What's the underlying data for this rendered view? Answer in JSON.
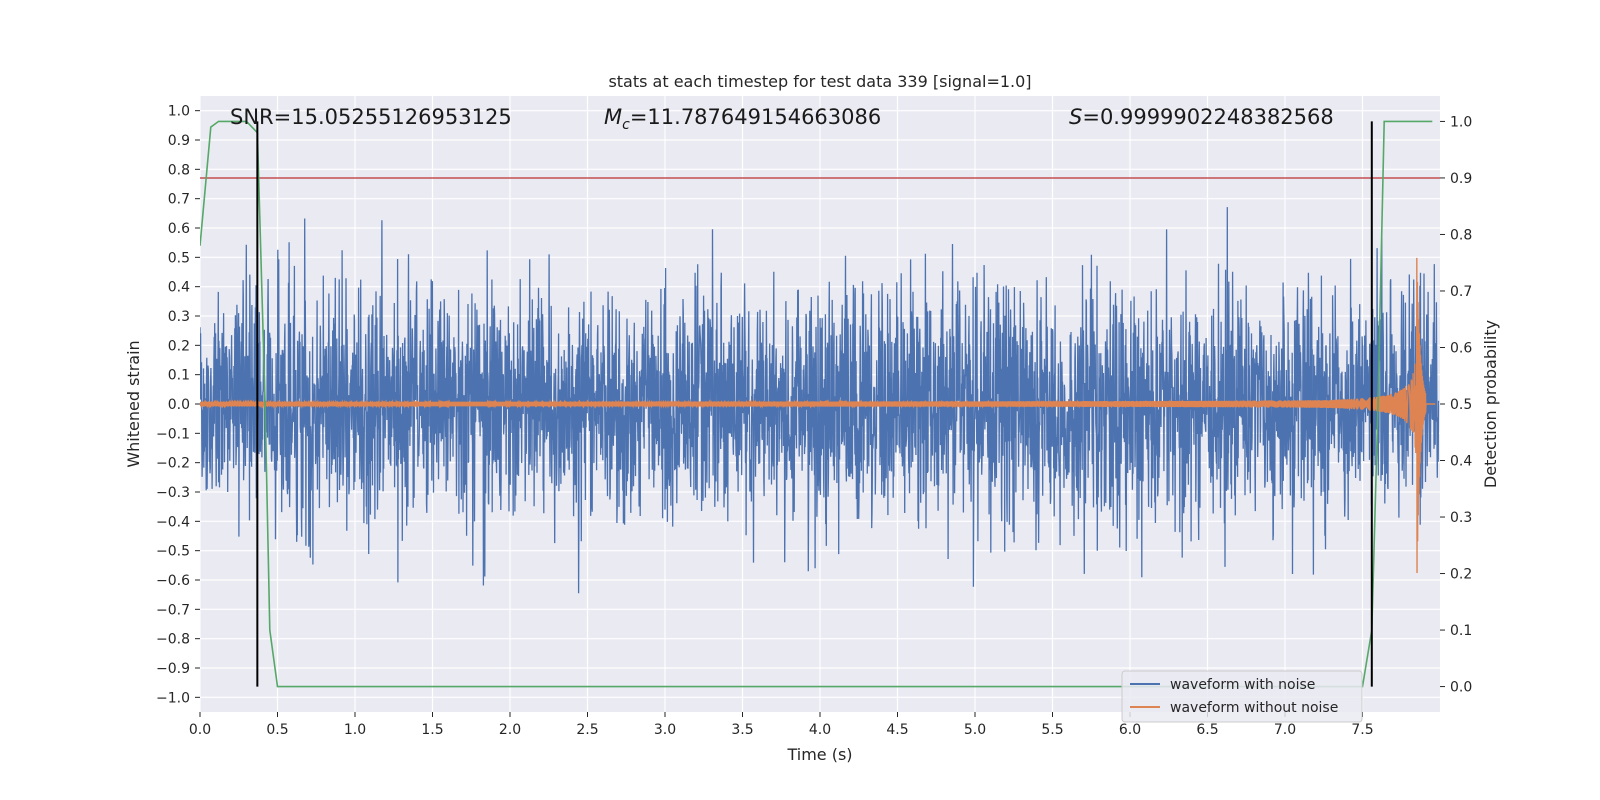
{
  "chart_data": {
    "type": "line",
    "title": "stats at each timestep for test data 339 [signal=1.0]",
    "xlabel": "Time (s)",
    "ylabel": "Whitened strain",
    "y2label": "Detection probability",
    "xlim": [
      0.0,
      8.0
    ],
    "ylim": [
      -1.05,
      1.05
    ],
    "y2lim": [
      -0.045,
      1.045
    ],
    "xticks": [
      "0.0",
      "0.5",
      "1.0",
      "1.5",
      "2.0",
      "2.5",
      "3.0",
      "3.5",
      "4.0",
      "4.5",
      "5.0",
      "5.5",
      "6.0",
      "6.5",
      "7.0",
      "7.5"
    ],
    "yticks": [
      "1.0",
      "0.9",
      "0.8",
      "0.7",
      "0.6",
      "0.5",
      "0.4",
      "0.3",
      "0.2",
      "0.1",
      "0.0",
      "−0.1",
      "−0.2",
      "−0.3",
      "−0.4",
      "−0.5",
      "−0.6",
      "−0.7",
      "−0.8",
      "−0.9",
      "−1.0"
    ],
    "y2ticks": [
      "1.0",
      "0.9",
      "0.8",
      "0.7",
      "0.6",
      "0.5",
      "0.4",
      "0.3",
      "0.2",
      "0.1",
      "0.0"
    ],
    "annotations": {
      "snr": "SNR=15.05255126953125",
      "mc_symbol": "M",
      "mc_sub": "c",
      "mc_value": "=11.787649154663086",
      "s_symbol": "S",
      "s_value": "=0.9999902248382568"
    },
    "threshold": {
      "axis": "right",
      "value": 0.9,
      "color": "#c44e52"
    },
    "vertical_lines": [
      0.37,
      7.56
    ],
    "series": [
      {
        "name": "waveform with noise",
        "color": "#4c72b0",
        "axis": "left",
        "noise_std": 0.19,
        "x_range": [
          0.0,
          7.99
        ]
      },
      {
        "name": "waveform without noise",
        "color": "#dd8452",
        "axis": "left",
        "chirp_start": 0.0,
        "chirp_merger": 7.85,
        "peak": 0.67
      },
      {
        "name": "detection probability",
        "color": "#55a868",
        "axis": "right",
        "points": [
          [
            0.0,
            0.78
          ],
          [
            0.07,
            0.99
          ],
          [
            0.12,
            1.0
          ],
          [
            0.3,
            1.0
          ],
          [
            0.37,
            0.98
          ],
          [
            0.42,
            0.5
          ],
          [
            0.45,
            0.1
          ],
          [
            0.5,
            0.0
          ],
          [
            7.5,
            0.0
          ],
          [
            7.56,
            0.1
          ],
          [
            7.6,
            0.5
          ],
          [
            7.64,
            1.0
          ],
          [
            7.95,
            1.0
          ]
        ]
      }
    ],
    "legend": {
      "location": "lower-right",
      "entries": [
        "waveform with noise",
        "waveform without noise"
      ]
    },
    "grid": true,
    "background": "#eaeaf2"
  }
}
